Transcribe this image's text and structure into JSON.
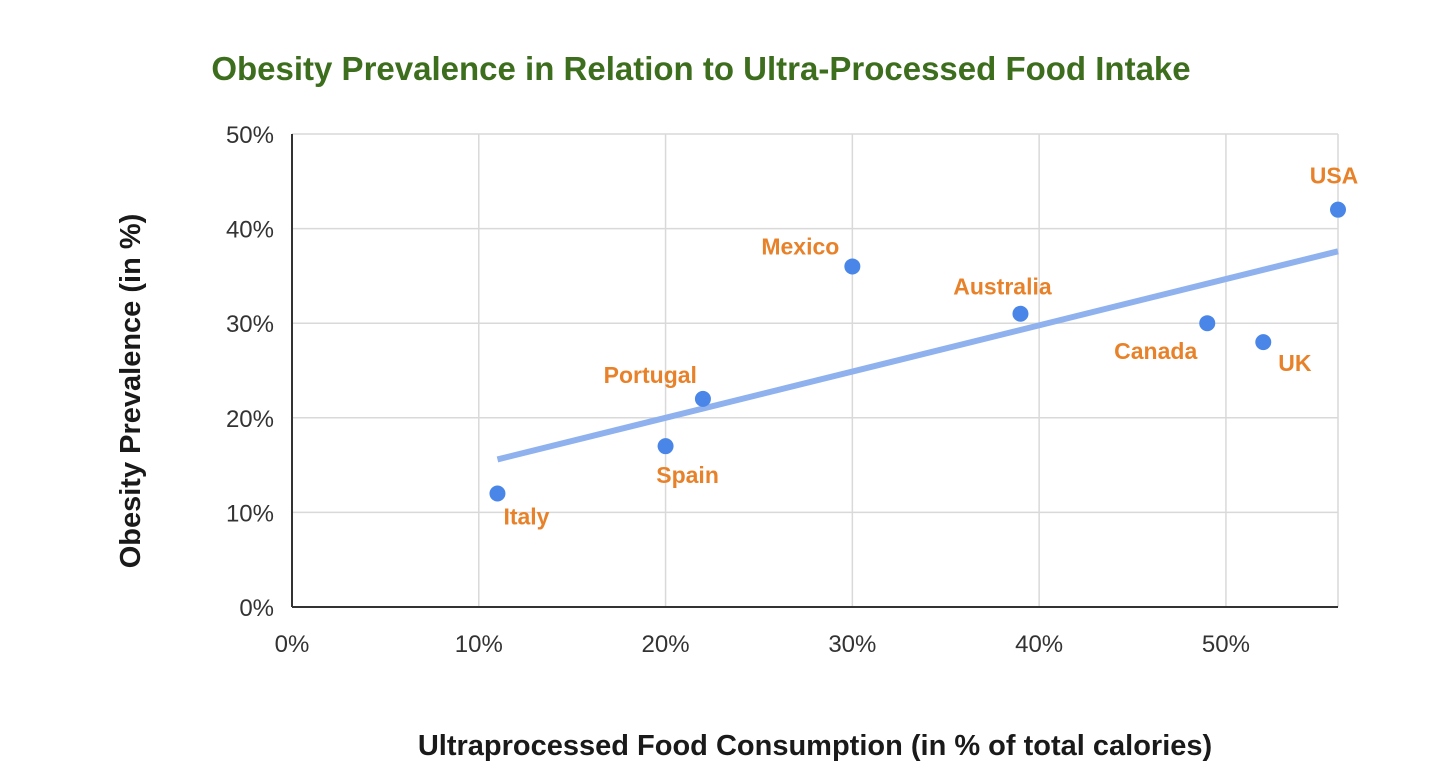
{
  "chart_data": {
    "type": "scatter",
    "title": "Obesity Prevalence in Relation to Ultra-Processed Food Intake",
    "xlabel": "Ultraprocessed Food Consumption (in % of total calories)",
    "ylabel": "Obesity Prevalence (in %)",
    "xlim": [
      0,
      56
    ],
    "ylim": [
      0,
      50
    ],
    "x_ticks": [
      0,
      10,
      20,
      30,
      40,
      50
    ],
    "x_tick_labels": [
      "0%",
      "10%",
      "20%",
      "30%",
      "40%",
      "50%"
    ],
    "y_ticks": [
      0,
      10,
      20,
      30,
      40,
      50
    ],
    "y_tick_labels": [
      "0%",
      "10%",
      "20%",
      "30%",
      "40%",
      "50%"
    ],
    "grid": true,
    "legend": "none",
    "points": [
      {
        "label": "Italy",
        "x": 11,
        "y": 12
      },
      {
        "label": "Spain",
        "x": 20,
        "y": 17
      },
      {
        "label": "Portugal",
        "x": 22,
        "y": 22
      },
      {
        "label": "Mexico",
        "x": 30,
        "y": 36
      },
      {
        "label": "Australia",
        "x": 39,
        "y": 31
      },
      {
        "label": "Canada",
        "x": 49,
        "y": 30
      },
      {
        "label": "UK",
        "x": 52,
        "y": 28
      },
      {
        "label": "USA",
        "x": 56,
        "y": 42
      }
    ],
    "trendline": {
      "x": [
        11,
        56
      ],
      "y": [
        15.6,
        37.6
      ]
    },
    "colors": {
      "title": "#3d6e1e",
      "points": "#4a86e8",
      "trendline": "#8fb2ee",
      "point_labels": "#e8822a",
      "grid": "#d9d9d9"
    }
  }
}
